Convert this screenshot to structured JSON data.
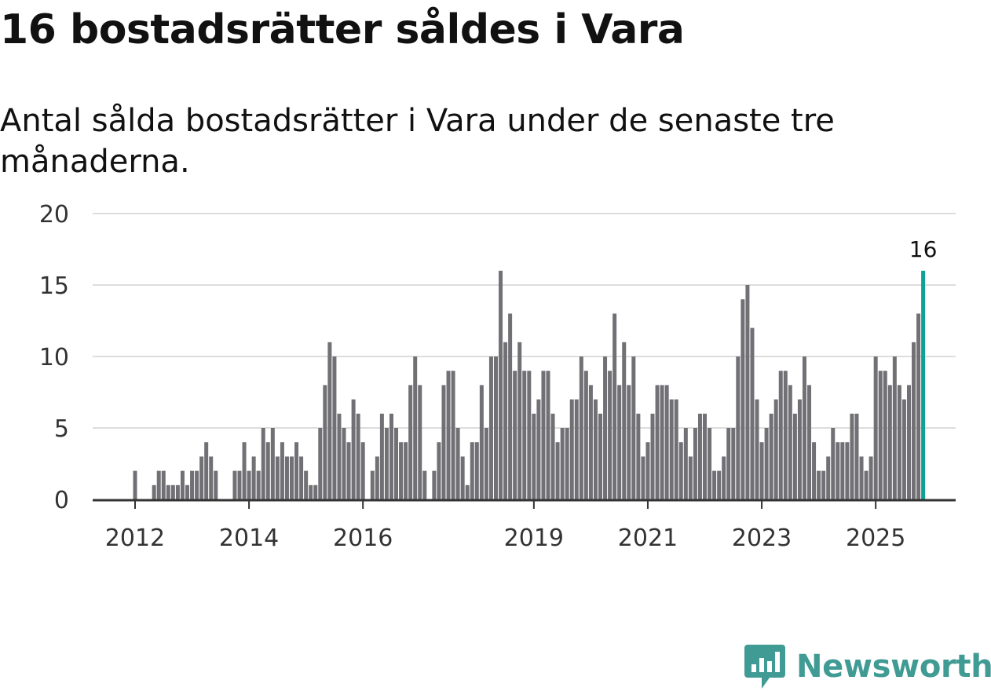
{
  "header": {
    "title": "16 bostadsrätter såldes i Vara",
    "subtitle": "Antal sålda bostadsrätter i Vara under de senaste tre månaderna."
  },
  "brand": {
    "name": "Newsworthy",
    "color": "#3f9b93",
    "icon": "newsworthy-logo-icon"
  },
  "colors": {
    "bar": "#717075",
    "highlight": "#10a195",
    "grid": "#dddddd",
    "axis": "#333333"
  },
  "chart_data": {
    "type": "bar",
    "title": "16 bostadsrätter såldes i Vara",
    "subtitle": "Antal sålda bostadsrätter i Vara under de senaste tre månaderna.",
    "xlabel": "",
    "ylabel": "",
    "ylim": [
      0,
      20
    ],
    "yticks": [
      0,
      5,
      10,
      15,
      20
    ],
    "grid": true,
    "start": {
      "year": 2011,
      "month": 11
    },
    "xticks": [
      {
        "label": "2012",
        "year": 2012,
        "month": 1
      },
      {
        "label": "2014",
        "year": 2014,
        "month": 1
      },
      {
        "label": "2016",
        "year": 2016,
        "month": 1
      },
      {
        "label": "2019",
        "year": 2019,
        "month": 1
      },
      {
        "label": "2021",
        "year": 2021,
        "month": 1
      },
      {
        "label": "2023",
        "year": 2023,
        "month": 1
      },
      {
        "label": "2025",
        "year": 2025,
        "month": 1
      }
    ],
    "highlight_label": "16",
    "values": [
      0,
      0,
      2,
      0,
      0,
      0,
      1,
      2,
      2,
      1,
      1,
      1,
      2,
      1,
      2,
      2,
      3,
      4,
      3,
      2,
      0,
      0,
      0,
      2,
      2,
      4,
      2,
      3,
      2,
      5,
      4,
      5,
      3,
      4,
      3,
      3,
      4,
      3,
      2,
      1,
      1,
      5,
      8,
      11,
      10,
      6,
      5,
      4,
      7,
      6,
      4,
      0,
      2,
      3,
      6,
      5,
      6,
      5,
      4,
      4,
      8,
      10,
      8,
      2,
      0,
      2,
      4,
      8,
      9,
      9,
      5,
      3,
      1,
      4,
      4,
      8,
      5,
      10,
      10,
      16,
      11,
      13,
      9,
      11,
      9,
      9,
      6,
      7,
      9,
      9,
      6,
      4,
      5,
      5,
      7,
      7,
      10,
      9,
      8,
      7,
      6,
      10,
      9,
      13,
      8,
      11,
      8,
      10,
      6,
      3,
      4,
      6,
      8,
      8,
      8,
      7,
      7,
      4,
      5,
      3,
      5,
      6,
      6,
      5,
      2,
      2,
      3,
      5,
      5,
      10,
      14,
      15,
      12,
      7,
      4,
      5,
      6,
      7,
      9,
      9,
      8,
      6,
      7,
      10,
      8,
      4,
      2,
      2,
      3,
      5,
      4,
      4,
      4,
      6,
      6,
      3,
      2,
      3,
      10,
      9,
      9,
      8,
      10,
      8,
      7,
      8,
      11,
      13,
      16
    ]
  }
}
